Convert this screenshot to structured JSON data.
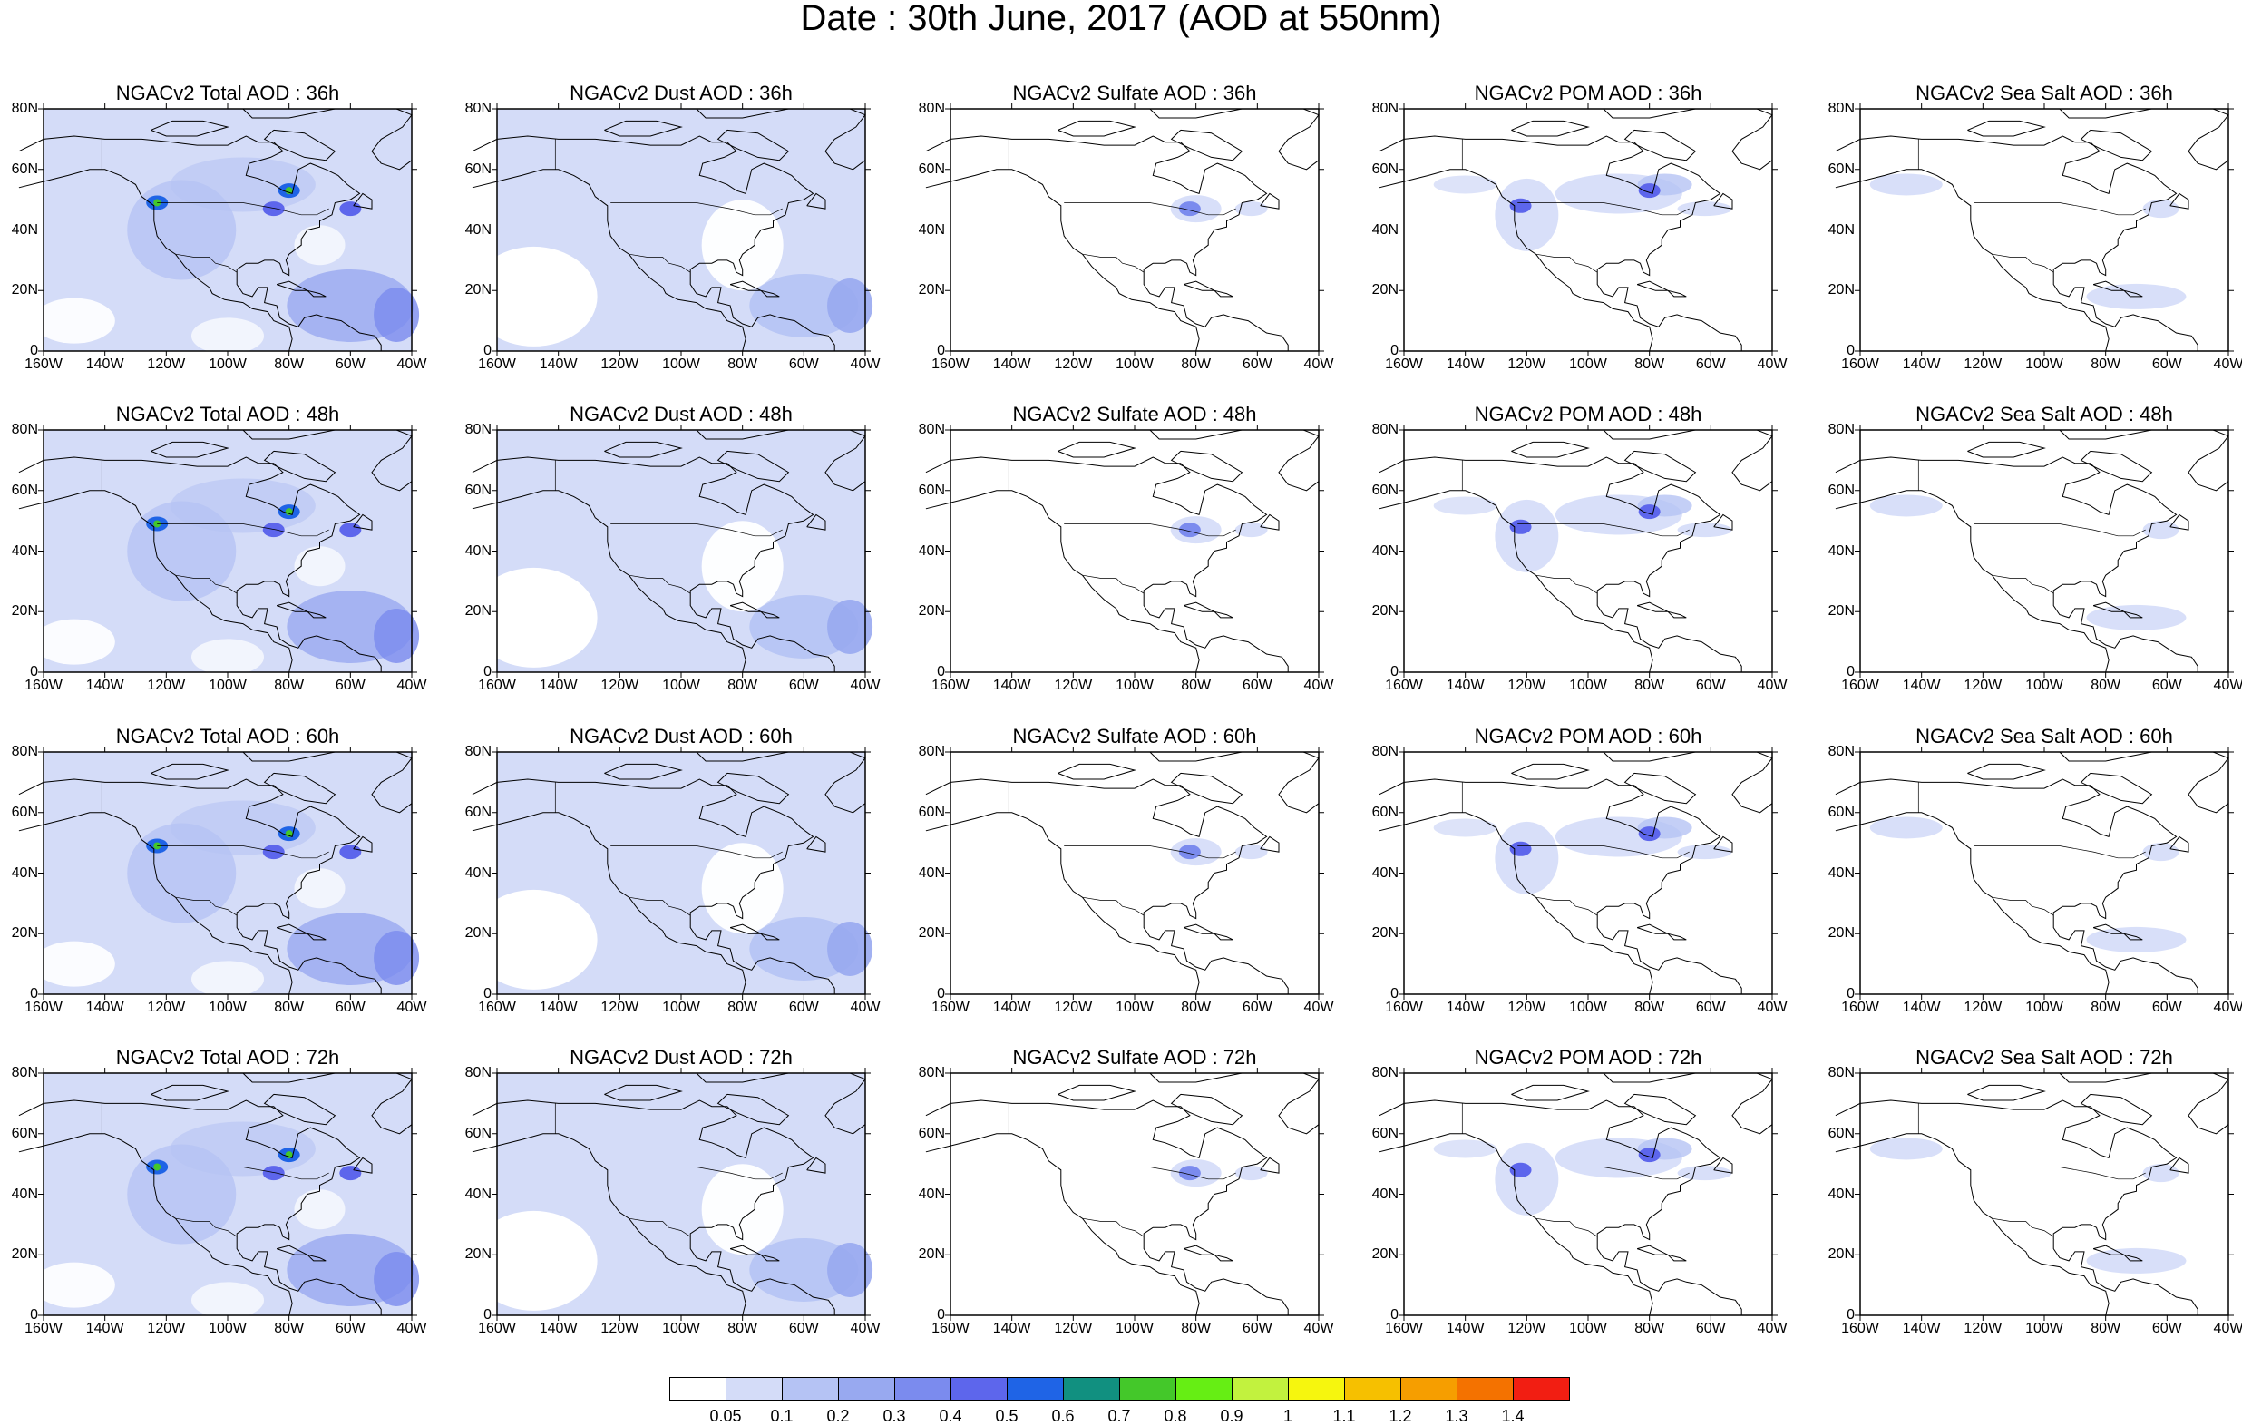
{
  "title": "Date : 30th June, 2017 (AOD at 550nm)",
  "lat_labels": [
    "80N",
    "60N",
    "40N",
    "20N",
    "0"
  ],
  "lon_labels": [
    "160W",
    "140W",
    "120W",
    "100W",
    "80W",
    "60W",
    "40W"
  ],
  "map_extent": {
    "lon": [
      -160,
      -40
    ],
    "lat": [
      0,
      80
    ]
  },
  "panels": [
    {
      "title": "NGACv2 Total AOD : 36h",
      "species": "total",
      "fore": 36
    },
    {
      "title": "NGACv2 Dust AOD : 36h",
      "species": "dust",
      "fore": 36
    },
    {
      "title": "NGACv2 Sulfate AOD : 36h",
      "species": "sulfate",
      "fore": 36
    },
    {
      "title": "NGACv2 POM AOD : 36h",
      "species": "pom",
      "fore": 36
    },
    {
      "title": "NGACv2 Sea Salt AOD : 36h",
      "species": "seasalt",
      "fore": 36
    },
    {
      "title": "NGACv2 Total AOD : 48h",
      "species": "total",
      "fore": 48
    },
    {
      "title": "NGACv2 Dust AOD : 48h",
      "species": "dust",
      "fore": 48
    },
    {
      "title": "NGACv2 Sulfate AOD : 48h",
      "species": "sulfate",
      "fore": 48
    },
    {
      "title": "NGACv2 POM AOD : 48h",
      "species": "pom",
      "fore": 48
    },
    {
      "title": "NGACv2 Sea Salt AOD : 48h",
      "species": "seasalt",
      "fore": 48
    },
    {
      "title": "NGACv2 Total AOD : 60h",
      "species": "total",
      "fore": 60
    },
    {
      "title": "NGACv2 Dust AOD : 60h",
      "species": "dust",
      "fore": 60
    },
    {
      "title": "NGACv2 Sulfate AOD : 60h",
      "species": "sulfate",
      "fore": 60
    },
    {
      "title": "NGACv2 POM AOD : 60h",
      "species": "pom",
      "fore": 60
    },
    {
      "title": "NGACv2 Sea Salt AOD : 60h",
      "species": "seasalt",
      "fore": 60
    },
    {
      "title": "NGACv2 Total AOD : 72h",
      "species": "total",
      "fore": 72
    },
    {
      "title": "NGACv2 Dust AOD : 72h",
      "species": "dust",
      "fore": 72
    },
    {
      "title": "NGACv2 Sulfate AOD : 72h",
      "species": "sulfate",
      "fore": 72
    },
    {
      "title": "NGACv2 POM AOD : 72h",
      "species": "pom",
      "fore": 72
    },
    {
      "title": "NGACv2 Sea Salt  AOD : 72h",
      "species": "seasalt",
      "fore": 72
    }
  ],
  "colorbar": {
    "labels": [
      "0.05",
      "0.1",
      "0.2",
      "0.3",
      "0.4",
      "0.5",
      "0.6",
      "0.7",
      "0.8",
      "0.9",
      "1",
      "1.1",
      "1.2",
      "1.3",
      "1.4"
    ],
    "colors": [
      "#ffffff",
      "#d4dcf8",
      "#b5c3f4",
      "#98a9f0",
      "#7b8bee",
      "#5d66ec",
      "#1f64e6",
      "#119080",
      "#44c82a",
      "#66ee14",
      "#c2f23e",
      "#f6f60e",
      "#f6c000",
      "#f69e00",
      "#f47200",
      "#f21e12"
    ]
  },
  "hotspots": {
    "total": [
      {
        "lon": -123,
        "lat": 49,
        "level": 3
      },
      {
        "lon": -80,
        "lat": 53,
        "level": 3
      },
      {
        "lon": -85,
        "lat": 47,
        "level": 2
      },
      {
        "lon": -60,
        "lat": 47,
        "level": 2
      }
    ],
    "dust": [],
    "sulfate": [
      {
        "lon": -82,
        "lat": 47,
        "level": 1
      }
    ],
    "pom": [
      {
        "lon": -80,
        "lat": 53,
        "level": 2
      },
      {
        "lon": -122,
        "lat": 48,
        "level": 2
      }
    ],
    "seasalt": []
  }
}
